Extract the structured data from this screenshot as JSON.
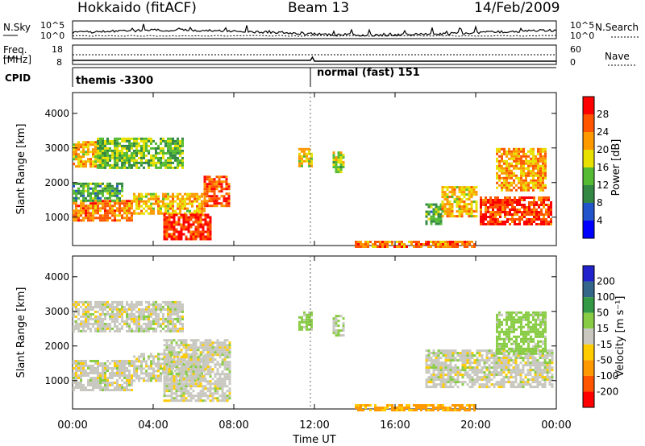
{
  "header": {
    "station": "Hokkaido (fitACF)",
    "beam": "Beam 13",
    "date": "14/Feb/2009"
  },
  "side_labels": {
    "nsky": "N.Sky",
    "nsearch": "N.Search",
    "freq": "Freq.",
    "freq_unit": "[MHz]",
    "nave": "Nave",
    "cpid": "CPID"
  },
  "noise_panel": {
    "left_ticks": [
      "10^5",
      "10^0"
    ],
    "right_ticks": [
      "10^5",
      "10^0"
    ]
  },
  "freq_panel": {
    "left_ticks": [
      "18",
      "8"
    ],
    "right_ticks": [
      "60",
      "0"
    ]
  },
  "cpid_panel": {
    "segments": [
      {
        "label": "themis -3300",
        "start_hour": 0
      },
      {
        "label": "normal (fast) 151",
        "start_hour": 11.8
      }
    ]
  },
  "colorbars": {
    "power": {
      "label": "Power [dB]",
      "ticks": [
        "4",
        "8",
        "12",
        "16",
        "20",
        "24",
        "28"
      ],
      "colors": [
        "#0000ff",
        "#2255cc",
        "#338844",
        "#55bb33",
        "#e8e000",
        "#ff9900",
        "#ff5500",
        "#ff0000"
      ]
    },
    "velocity": {
      "label": "Velocity [m s⁻¹]",
      "ticks": [
        "200",
        "100",
        "50",
        "15",
        "-15",
        "-50",
        "-100",
        "-200"
      ],
      "colors": [
        "#2222cc",
        "#336688",
        "#339944",
        "#88cc44",
        "#c8c8c0",
        "#ffcc00",
        "#ff9900",
        "#ff5500",
        "#ff0000"
      ]
    }
  },
  "chart_data": [
    {
      "type": "heatmap",
      "title": "Power",
      "xlabel": "Time UT",
      "ylabel": "Slant Range [km]",
      "x_ticks": [
        "00:00",
        "04:00",
        "08:00",
        "12:00",
        "16:00",
        "20:00",
        "00:00"
      ],
      "y_ticks": [
        "1000",
        "2000",
        "3000",
        "4000"
      ],
      "xlim": [
        0,
        24
      ],
      "ylim": [
        180,
        4600
      ],
      "colorbar": "Power [dB]",
      "regions": [
        {
          "t0": 0.0,
          "t1": 3.0,
          "r0": 900,
          "r1": 1500,
          "value": 24
        },
        {
          "t0": 0.0,
          "t1": 1.6,
          "r0": 2500,
          "r1": 3200,
          "value": 20
        },
        {
          "t0": 3.0,
          "t1": 6.5,
          "r0": 1100,
          "r1": 1700,
          "value": 20
        },
        {
          "t0": 4.5,
          "t1": 6.8,
          "r0": 400,
          "r1": 1100,
          "value": 28
        },
        {
          "t0": 6.5,
          "t1": 7.8,
          "r0": 1300,
          "r1": 2200,
          "value": 26
        },
        {
          "t0": 1.2,
          "t1": 5.5,
          "r0": 2400,
          "r1": 3300,
          "value": 14
        },
        {
          "t0": 0.0,
          "t1": 2.5,
          "r0": 1500,
          "r1": 2000,
          "value": 12
        },
        {
          "t0": 11.2,
          "t1": 11.8,
          "r0": 2500,
          "r1": 3000,
          "value": 18
        },
        {
          "t0": 12.9,
          "t1": 13.4,
          "r0": 2300,
          "r1": 2900,
          "value": 16
        },
        {
          "t0": 17.5,
          "t1": 18.3,
          "r0": 800,
          "r1": 1400,
          "value": 12
        },
        {
          "t0": 18.3,
          "t1": 20.0,
          "r0": 1000,
          "r1": 1900,
          "value": 20
        },
        {
          "t0": 20.2,
          "t1": 23.8,
          "r0": 800,
          "r1": 1600,
          "value": 28
        },
        {
          "t0": 21.0,
          "t1": 23.5,
          "r0": 1800,
          "r1": 3000,
          "value": 22
        },
        {
          "t0": 14.0,
          "t1": 20.0,
          "r0": 180,
          "r1": 320,
          "value": 24
        }
      ]
    },
    {
      "type": "heatmap",
      "title": "Velocity",
      "xlabel": "Time UT",
      "ylabel": "Slant Range [km]",
      "x_ticks": [
        "00:00",
        "04:00",
        "08:00",
        "12:00",
        "16:00",
        "20:00",
        "00:00"
      ],
      "y_ticks": [
        "1000",
        "2000",
        "3000",
        "4000"
      ],
      "xlim": [
        0,
        24
      ],
      "ylim": [
        180,
        4600
      ],
      "colorbar": "Velocity [m s⁻¹]",
      "regions": [
        {
          "t0": 0.0,
          "t1": 3.0,
          "r0": 700,
          "r1": 1600,
          "value": 0
        },
        {
          "t0": 3.0,
          "t1": 6.5,
          "r0": 1000,
          "r1": 1800,
          "value": 0
        },
        {
          "t0": 4.5,
          "t1": 7.8,
          "r0": 400,
          "r1": 2200,
          "value": 0
        },
        {
          "t0": 0.0,
          "t1": 5.5,
          "r0": 2400,
          "r1": 3300,
          "value": 0
        },
        {
          "t0": 11.2,
          "t1": 11.8,
          "r0": 2500,
          "r1": 3000,
          "value": 30
        },
        {
          "t0": 12.9,
          "t1": 13.4,
          "r0": 2300,
          "r1": 2900,
          "value": 20
        },
        {
          "t0": 17.5,
          "t1": 23.8,
          "r0": 800,
          "r1": 1900,
          "value": 0
        },
        {
          "t0": 21.0,
          "t1": 23.5,
          "r0": 1800,
          "r1": 3000,
          "value": 30
        },
        {
          "t0": 14.0,
          "t1": 20.0,
          "r0": 180,
          "r1": 320,
          "value": -60
        }
      ]
    }
  ]
}
